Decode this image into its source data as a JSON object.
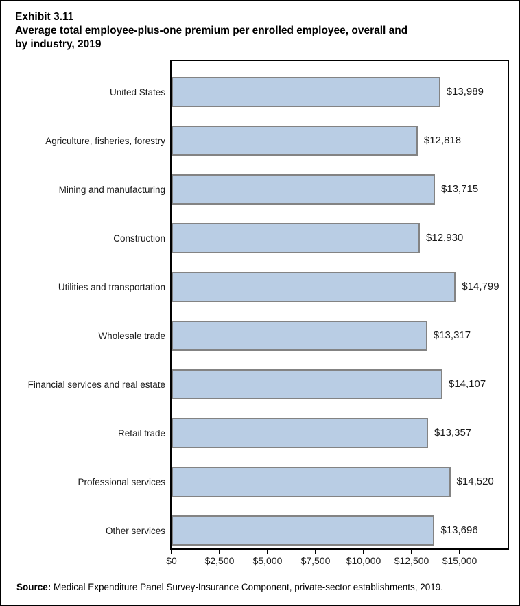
{
  "page": {
    "exhibit_label": "Exhibit 3.11",
    "title_line1": "Average total employee-plus-one premium per enrolled employee, overall and",
    "title_line2": "by industry, 2019",
    "source_label": "Source:",
    "source_text": " Medical Expenditure Panel Survey-Insurance Component, private-sector establishments, 2019."
  },
  "chart_data": {
    "type": "bar",
    "orientation": "horizontal",
    "title": "Average total employee-plus-one premium per enrolled employee, overall and by industry, 2019",
    "categories": [
      "United States",
      "Agriculture, fisheries, forestry",
      "Mining and manufacturing",
      "Construction",
      "Utilities and transportation",
      "Wholesale trade",
      "Financial services and real estate",
      "Retail trade",
      "Professional services",
      "Other services"
    ],
    "values": [
      13989,
      12818,
      13715,
      12930,
      14799,
      13317,
      14107,
      13357,
      14520,
      13696
    ],
    "value_labels": [
      "$13,989",
      "$12,818",
      "$13,715",
      "$12,930",
      "$14,799",
      "$13,317",
      "$14,107",
      "$13,357",
      "$14,520",
      "$13,696"
    ],
    "xlabel": "",
    "ylabel": "",
    "xlim": [
      0,
      17500
    ],
    "xticks": [
      0,
      2500,
      5000,
      7500,
      10000,
      12500,
      15000
    ],
    "xtick_labels": [
      "$0",
      "$2,500",
      "$5,000",
      "$7,500",
      "$10,000",
      "$12,500",
      "$15,000"
    ],
    "grid": false,
    "legend": false,
    "bar_fill": "#b9cde4",
    "bar_border": "#838383"
  }
}
